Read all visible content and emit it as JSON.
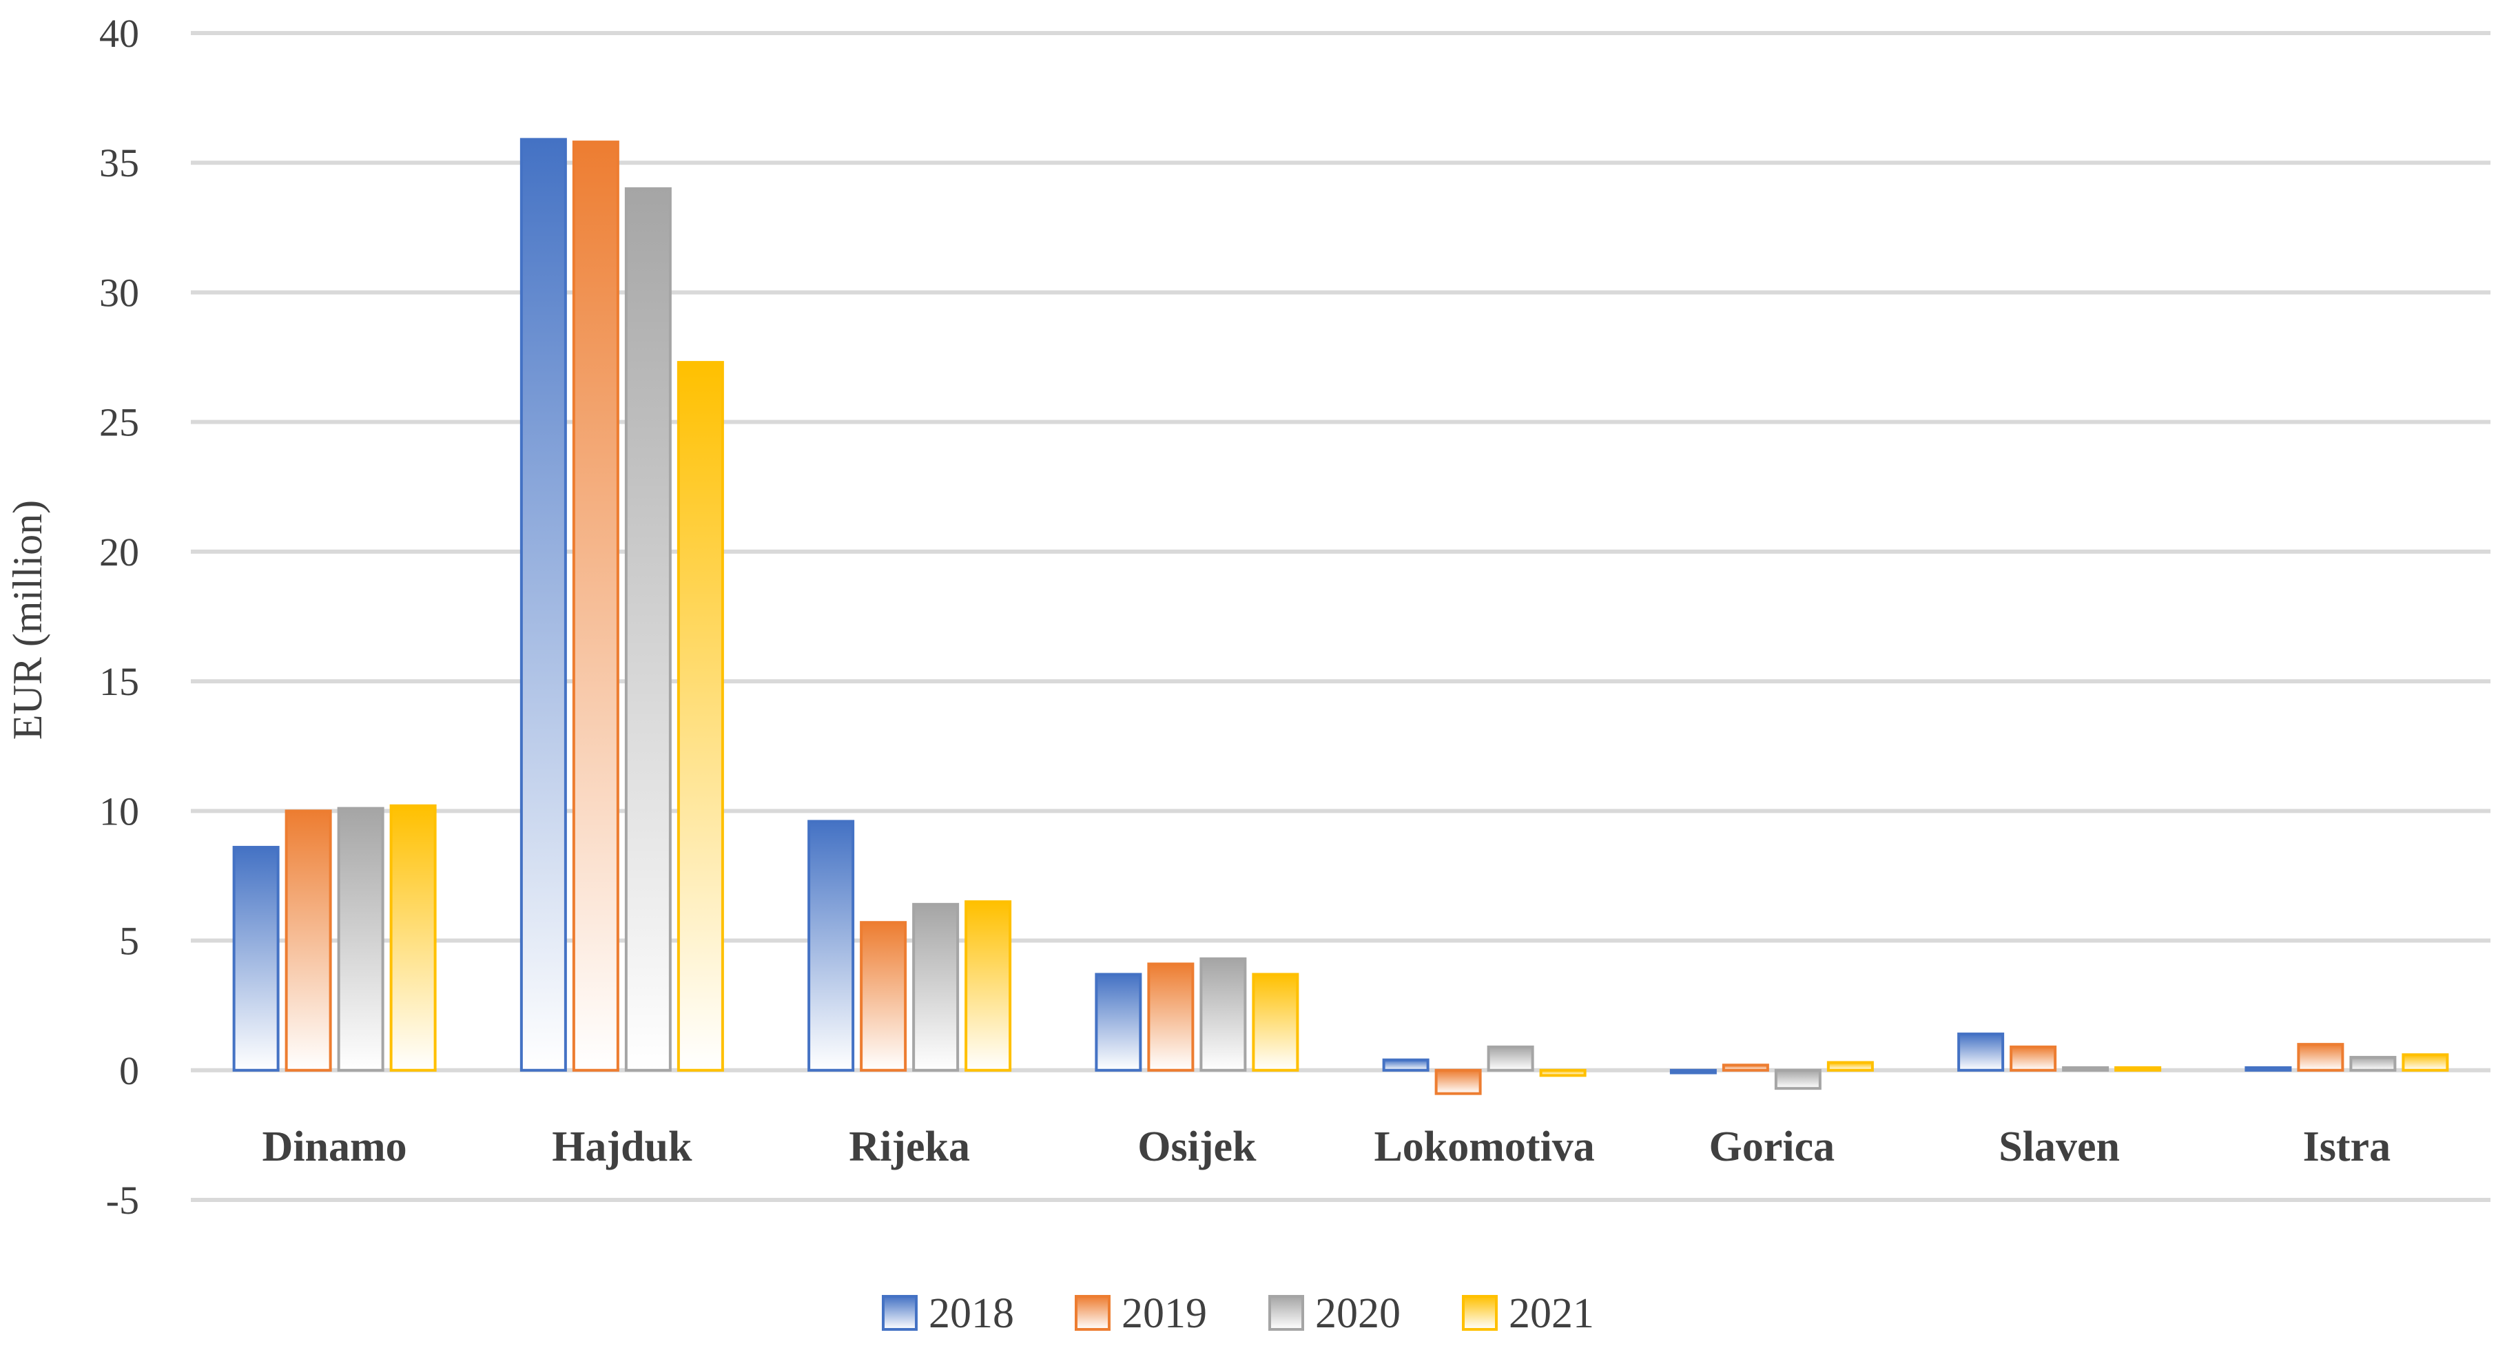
{
  "chart_data": {
    "type": "bar",
    "title": "",
    "xlabel": "",
    "ylabel": "EUR (million)",
    "ylim": [
      -5,
      40
    ],
    "yticks": [
      -5,
      0,
      5,
      10,
      15,
      20,
      25,
      30,
      35,
      40
    ],
    "grid": true,
    "legend_position": "bottom",
    "categories": [
      "Dinamo",
      "Hajduk",
      "Rijeka",
      "Osijek",
      "Lokomotiva",
      "Gorica",
      "Slaven",
      "Istra"
    ],
    "series": [
      {
        "name": "2018",
        "color": "#4472C4",
        "values": [
          8.6,
          35.9,
          9.6,
          3.7,
          0.4,
          -0.1,
          1.4,
          0.1
        ]
      },
      {
        "name": "2019",
        "color": "#ED7D31",
        "values": [
          10.0,
          35.8,
          5.7,
          4.1,
          -0.9,
          0.2,
          0.9,
          1.0
        ]
      },
      {
        "name": "2020",
        "color": "#A5A5A5",
        "values": [
          10.1,
          34.0,
          6.4,
          4.3,
          0.9,
          -0.7,
          0.1,
          0.5
        ]
      },
      {
        "name": "2021",
        "color": "#FFC000",
        "values": [
          10.2,
          27.3,
          6.5,
          3.7,
          -0.2,
          0.3,
          0.1,
          0.6
        ]
      }
    ]
  }
}
